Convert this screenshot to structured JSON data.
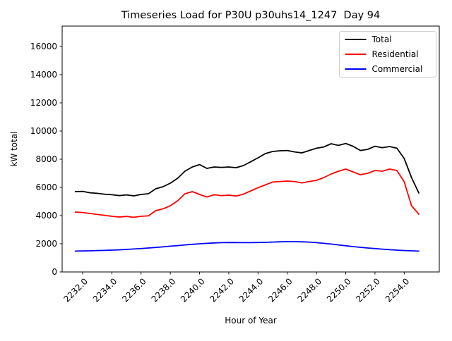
{
  "chart_data": {
    "type": "line",
    "title": "Timeseries Load for P30U p30uhs14_1247  Day 94",
    "xlabel": "Hour of Year",
    "ylabel": "kW total",
    "grid": false,
    "legend_position": "upper right",
    "xlim": [
      2230.6,
      2256.4
    ],
    "ylim": [
      0,
      17450
    ],
    "xticks": [
      2232,
      2234,
      2236,
      2238,
      2240,
      2242,
      2244,
      2246,
      2248,
      2250,
      2252,
      2254
    ],
    "xtick_labels": [
      "2232.0",
      "2234.0",
      "2236.0",
      "2238.0",
      "2240.0",
      "2242.0",
      "2244.0",
      "2246.0",
      "2248.0",
      "2250.0",
      "2252.0",
      "2254.0"
    ],
    "yticks": [
      0,
      2000,
      4000,
      6000,
      8000,
      10000,
      12000,
      14000,
      16000
    ],
    "ytick_labels": [
      "0",
      "2000",
      "4000",
      "6000",
      "8000",
      "10000",
      "12000",
      "14000",
      "16000"
    ],
    "x": [
      2231.5,
      2232.0,
      2232.5,
      2233.0,
      2233.5,
      2234.0,
      2234.5,
      2235.0,
      2235.5,
      2236.0,
      2236.5,
      2237.0,
      2237.5,
      2238.0,
      2238.5,
      2239.0,
      2239.5,
      2240.0,
      2240.5,
      2241.0,
      2241.5,
      2242.0,
      2242.5,
      2243.0,
      2243.5,
      2244.0,
      2244.5,
      2245.0,
      2245.5,
      2246.0,
      2246.5,
      2247.0,
      2247.5,
      2248.0,
      2248.5,
      2249.0,
      2249.5,
      2250.0,
      2250.5,
      2251.0,
      2251.5,
      2252.0,
      2252.5,
      2253.0,
      2253.5,
      2254.0,
      2254.5,
      2255.0
    ],
    "series": [
      {
        "name": "Total",
        "color": "#000000",
        "values": [
          5700,
          5720,
          5620,
          5580,
          5520,
          5480,
          5420,
          5470,
          5400,
          5500,
          5550,
          5900,
          6050,
          6300,
          6650,
          7150,
          7450,
          7620,
          7350,
          7450,
          7420,
          7450,
          7400,
          7550,
          7820,
          8100,
          8400,
          8550,
          8600,
          8620,
          8520,
          8450,
          8620,
          8780,
          8870,
          9100,
          8980,
          9120,
          8920,
          8620,
          8700,
          8920,
          8820,
          8900,
          8780,
          8050,
          6700,
          5600
        ]
      },
      {
        "name": "Residential",
        "color": "#ff0000",
        "values": [
          4250,
          4220,
          4150,
          4080,
          4020,
          3950,
          3900,
          3940,
          3880,
          3950,
          3980,
          4350,
          4480,
          4700,
          5050,
          5550,
          5700,
          5500,
          5320,
          5480,
          5420,
          5450,
          5390,
          5520,
          5750,
          5980,
          6180,
          6380,
          6420,
          6450,
          6420,
          6320,
          6420,
          6500,
          6700,
          6950,
          7150,
          7300,
          7100,
          6900,
          7000,
          7200,
          7150,
          7300,
          7200,
          6400,
          4700,
          4100
        ]
      },
      {
        "name": "Commercial",
        "color": "#0000ff",
        "values": [
          1480,
          1490,
          1500,
          1520,
          1530,
          1550,
          1570,
          1600,
          1630,
          1660,
          1700,
          1740,
          1780,
          1830,
          1870,
          1920,
          1960,
          2000,
          2030,
          2060,
          2080,
          2090,
          2085,
          2080,
          2080,
          2090,
          2100,
          2120,
          2140,
          2150,
          2150,
          2140,
          2120,
          2080,
          2030,
          1980,
          1920,
          1860,
          1800,
          1750,
          1700,
          1660,
          1620,
          1580,
          1550,
          1520,
          1500,
          1480
        ]
      }
    ]
  }
}
